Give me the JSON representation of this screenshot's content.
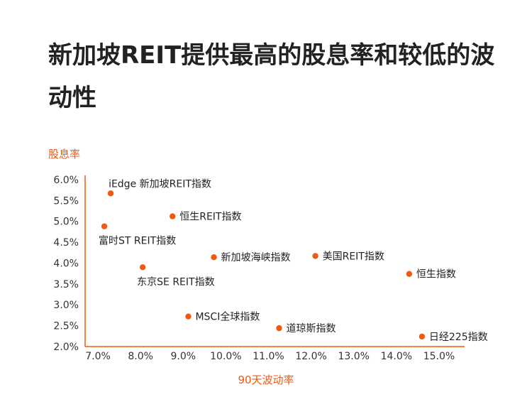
{
  "title": "新加坡REIT提供最高的股息率和较低的波动性",
  "chart_data": {
    "type": "scatter",
    "xlabel": "90天波动率",
    "ylabel": "股息率",
    "xlim": [
      6.7,
      15.6
    ],
    "ylim": [
      2.0,
      6.1
    ],
    "x_ticks": [
      "7.0%",
      "8.0%",
      "9.0%",
      "10.0%",
      "11.0%",
      "12.0%",
      "13.0%",
      "14.0%",
      "15.0%"
    ],
    "x_tick_values": [
      7.0,
      8.0,
      9.0,
      10.0,
      11.0,
      12.0,
      13.0,
      14.0,
      15.0
    ],
    "y_ticks": [
      "6.0%",
      "5.5%",
      "5.0%",
      "4.5%",
      "4.0%",
      "3.5%",
      "3.0%",
      "2.5%",
      "2.0%"
    ],
    "y_tick_values": [
      6.0,
      5.5,
      5.0,
      4.5,
      4.0,
      3.5,
      3.0,
      2.5,
      2.0
    ],
    "marker_color": "#ef5a0e",
    "axis_color": "#ef5a0e",
    "points": [
      {
        "label": "iEdge 新加坡REIT指数",
        "x": 7.3,
        "y": 5.67,
        "label_pos": "above-right"
      },
      {
        "label": "恒生REIT指数",
        "x": 8.75,
        "y": 5.12,
        "label_pos": "right"
      },
      {
        "label": "富时ST REIT指数",
        "x": 7.15,
        "y": 4.88,
        "label_pos": "below-right"
      },
      {
        "label": "新加坡海峡指数",
        "x": 9.72,
        "y": 4.14,
        "label_pos": "right"
      },
      {
        "label": "美国REIT指数",
        "x": 12.1,
        "y": 4.17,
        "label_pos": "right"
      },
      {
        "label": "恒生指数",
        "x": 14.3,
        "y": 3.74,
        "label_pos": "right"
      },
      {
        "label": "东京SE REIT指数",
        "x": 8.05,
        "y": 3.9,
        "label_pos": "below-right"
      },
      {
        "label": "MSCI全球指数",
        "x": 9.12,
        "y": 2.72,
        "label_pos": "right"
      },
      {
        "label": "道琼斯指数",
        "x": 11.25,
        "y": 2.44,
        "label_pos": "right"
      },
      {
        "label": "日经225指数",
        "x": 14.6,
        "y": 2.24,
        "label_pos": "right"
      }
    ]
  }
}
